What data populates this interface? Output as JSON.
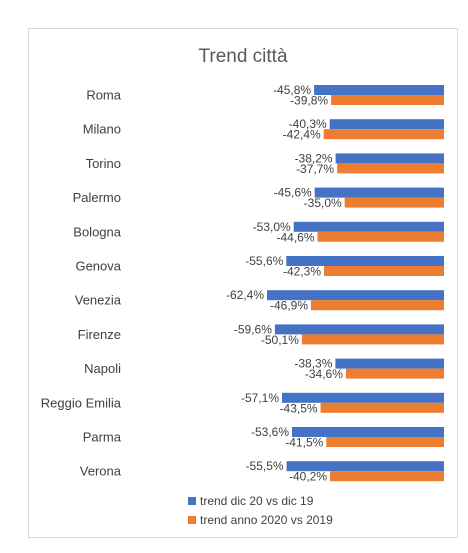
{
  "chart_data": {
    "type": "bar",
    "orientation": "horizontal",
    "title": "Trend città",
    "categories": [
      "Roma",
      "Milano",
      "Torino",
      "Palermo",
      "Bologna",
      "Genova",
      "Venezia",
      "Firenze",
      "Napoli",
      "Reggio Emilia",
      "Parma",
      "Verona"
    ],
    "series": [
      {
        "name": "trend dic 20 vs dic 19",
        "color": "#4472C4",
        "values": [
          -45.8,
          -40.3,
          -38.2,
          -45.6,
          -53.0,
          -55.6,
          -62.4,
          -59.6,
          -38.3,
          -57.1,
          -53.6,
          -55.5
        ],
        "labels": [
          "-45,8%",
          "-40,3%",
          "-38,2%",
          "-45,6%",
          "-53,0%",
          "-55,6%",
          "-62,4%",
          "-59,6%",
          "-38,3%",
          "-57,1%",
          "-53,6%",
          "-55,5%"
        ]
      },
      {
        "name": "trend anno 2020 vs 2019",
        "color": "#ED7D31",
        "values": [
          -39.8,
          -42.4,
          -37.7,
          -35.0,
          -44.6,
          -42.3,
          -46.9,
          -50.1,
          -34.6,
          -43.5,
          -41.5,
          -40.2
        ],
        "labels": [
          "-39,8%",
          "-42,4%",
          "-37,7%",
          "-35,0%",
          "-44,6%",
          "-42,3%",
          "-46,9%",
          "-50,1%",
          "-34,6%",
          "-43,5%",
          "-41,5%",
          "-40,2%"
        ]
      }
    ],
    "xlim": [
      -70,
      0
    ],
    "grid": false,
    "legend": "bottom"
  }
}
